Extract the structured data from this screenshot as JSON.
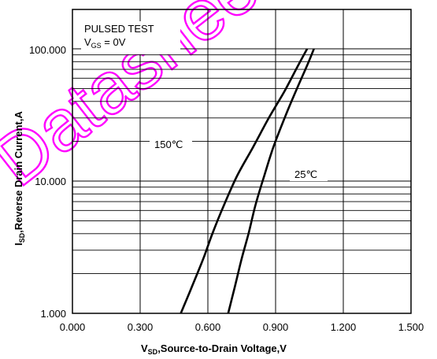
{
  "chart_data": {
    "type": "line",
    "title": "",
    "xlabel": {
      "main": "V",
      "sub": "SD",
      "rest": ",Source-to-Drain Voltage,V"
    },
    "ylabel": {
      "main": "I",
      "sub": "SD",
      "rest": ",Reverse Drain Current,A"
    },
    "xlim": [
      0,
      1.5
    ],
    "ylim": [
      1,
      100
    ],
    "yscale": "log",
    "grid": true,
    "x_ticks": [
      "0.000",
      "0.300",
      "0.600",
      "0.900",
      "1.200",
      "1.500"
    ],
    "y_ticks": [
      "1.000",
      "10.000",
      "100.000"
    ],
    "annotations": {
      "test_line1": "PULSED TEST",
      "test_line2_main": "V",
      "test_line2_sub": "GS",
      "test_line2_rest": " = 0V",
      "label_150": "150℃",
      "label_25": "25℃"
    },
    "series": [
      {
        "name": "150℃",
        "x": [
          0.48,
          0.53,
          0.58,
          0.62,
          0.67,
          0.73,
          0.8,
          0.87,
          0.94,
          1.0,
          1.04
        ],
        "y": [
          1,
          1.6,
          2.6,
          4,
          6.5,
          11,
          18,
          30,
          48,
          75,
          100
        ]
      },
      {
        "name": "25℃",
        "x": [
          0.69,
          0.72,
          0.75,
          0.78,
          0.81,
          0.85,
          0.89,
          0.94,
          0.99,
          1.04,
          1.07
        ],
        "y": [
          1,
          1.6,
          2.6,
          4,
          6.5,
          11,
          18,
          30,
          48,
          75,
          100
        ]
      }
    ],
    "colors": {
      "curves": "#000000",
      "watermark": "#ff00ff"
    },
    "watermark_text": "Datasheets"
  }
}
